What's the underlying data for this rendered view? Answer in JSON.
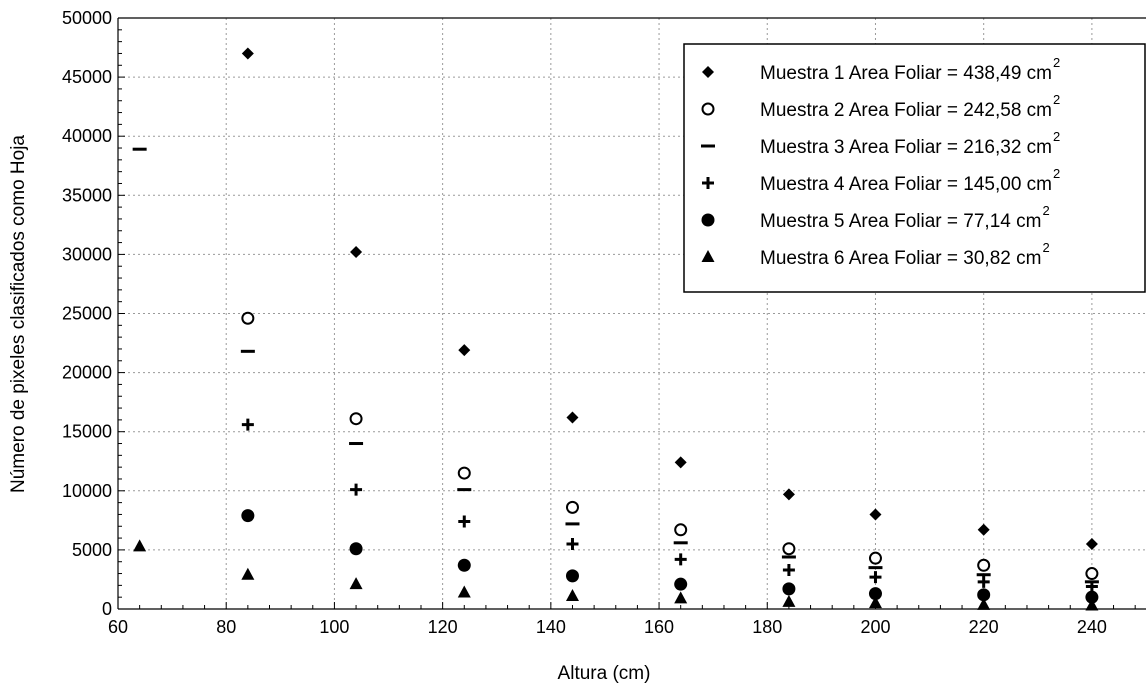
{
  "chart_data": {
    "type": "scatter",
    "xlabel": "Altura (cm)",
    "ylabel": "Número de pixeles clasificados como Hoja",
    "xlim": [
      60,
      250
    ],
    "ylim": [
      0,
      50000
    ],
    "x_ticks": [
      "60",
      "80",
      "100",
      "120",
      "140",
      "160",
      "180",
      "200",
      "220",
      "240"
    ],
    "y_ticks": [
      "0",
      "5000",
      "10000",
      "15000",
      "20000",
      "25000",
      "30000",
      "35000",
      "40000",
      "45000",
      "50000"
    ],
    "grid": true,
    "legend_position": "top-right",
    "series": [
      {
        "name": "Muestra 1 Area Foliar = 438,49 cm",
        "unit_superscript": "2",
        "marker": "diamond",
        "points": [
          [
            84,
            47000
          ],
          [
            104,
            30200
          ],
          [
            124,
            21900
          ],
          [
            144,
            16200
          ],
          [
            164,
            12400
          ],
          [
            184,
            9700
          ],
          [
            200,
            8000
          ],
          [
            220,
            6700
          ],
          [
            240,
            5500
          ]
        ]
      },
      {
        "name": "Muestra 2 Area Foliar = 242,58  cm",
        "unit_superscript": "2",
        "marker": "open-circle",
        "points": [
          [
            84,
            24600
          ],
          [
            104,
            16100
          ],
          [
            124,
            11500
          ],
          [
            144,
            8600
          ],
          [
            164,
            6700
          ],
          [
            184,
            5100
          ],
          [
            200,
            4300
          ],
          [
            220,
            3700
          ],
          [
            240,
            3000
          ]
        ]
      },
      {
        "name": "Muestra 3 Area Foliar = 216,32  cm",
        "unit_superscript": "2",
        "marker": "dash",
        "points": [
          [
            64,
            38900
          ],
          [
            84,
            21800
          ],
          [
            104,
            14000
          ],
          [
            124,
            10100
          ],
          [
            144,
            7200
          ],
          [
            164,
            5600
          ],
          [
            184,
            4400
          ],
          [
            200,
            3500
          ],
          [
            220,
            2900
          ],
          [
            240,
            2300
          ]
        ]
      },
      {
        "name": "Muestra 4 Area Foliar = 145,00 cm",
        "unit_superscript": "2",
        "marker": "plus",
        "points": [
          [
            84,
            15600
          ],
          [
            104,
            10100
          ],
          [
            124,
            7400
          ],
          [
            144,
            5500
          ],
          [
            164,
            4200
          ],
          [
            184,
            3300
          ],
          [
            200,
            2700
          ],
          [
            220,
            2300
          ],
          [
            240,
            1900
          ]
        ]
      },
      {
        "name": "Muestra 5 Area Foliar =   77,14 cm",
        "unit_superscript": "2",
        "marker": "filled-circle",
        "points": [
          [
            84,
            7900
          ],
          [
            104,
            5100
          ],
          [
            124,
            3700
          ],
          [
            144,
            2800
          ],
          [
            164,
            2100
          ],
          [
            184,
            1700
          ],
          [
            200,
            1300
          ],
          [
            220,
            1200
          ],
          [
            240,
            1000
          ]
        ]
      },
      {
        "name": "Muestra 6 Area Foliar =   30,82 cm",
        "unit_superscript": "2",
        "marker": "triangle",
        "points": [
          [
            64,
            5300
          ],
          [
            84,
            2900
          ],
          [
            104,
            2100
          ],
          [
            124,
            1400
          ],
          [
            144,
            1100
          ],
          [
            164,
            900
          ],
          [
            184,
            600
          ],
          [
            200,
            500
          ],
          [
            220,
            350
          ],
          [
            240,
            300
          ]
        ]
      }
    ]
  }
}
